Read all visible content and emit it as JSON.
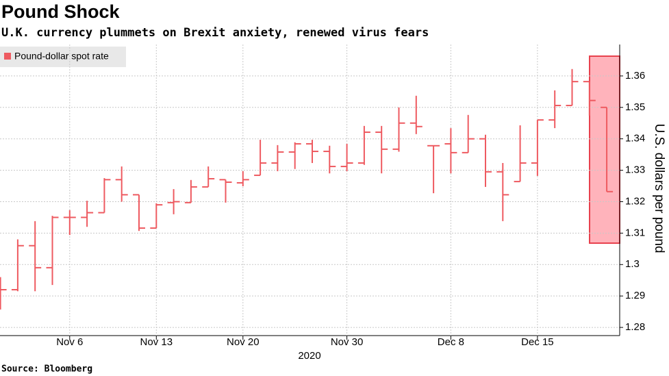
{
  "chart_data": {
    "type": "ohlc",
    "title": "Pound Shock",
    "subtitle": "U.K. currency plummets on Brexit anxiety, renewed virus fears",
    "source": "Source: Bloomberg",
    "x_label": "2020",
    "y_label": "U.S. dollars per pound",
    "categories": [
      null,
      null,
      null,
      null,
      "Nov 6",
      null,
      null,
      null,
      null,
      "Nov 13",
      null,
      null,
      null,
      null,
      "Nov 20",
      null,
      null,
      null,
      null,
      null,
      "Nov 30",
      null,
      null,
      null,
      null,
      null,
      "Dec 8",
      null,
      null,
      null,
      null,
      "Dec 15",
      null,
      null,
      null,
      null
    ],
    "series": [
      {
        "name": "Pound-dollar spot rate",
        "color": "#ee5a60",
        "open": [
          1.2935,
          1.292,
          1.306,
          1.299,
          1.315,
          1.315,
          1.3165,
          1.327,
          1.3222,
          1.3116,
          1.3197,
          1.3197,
          1.3247,
          1.327,
          1.326,
          1.3284,
          1.3323,
          1.3358,
          1.3384,
          1.336,
          1.3312,
          1.3323,
          1.3421,
          1.3367,
          1.345,
          1.3378,
          1.3384,
          1.3356,
          1.34,
          1.3295,
          1.3264,
          1.3323,
          1.346,
          1.3506,
          1.3582,
          1.35
        ],
        "high": [
          1.296,
          1.308,
          1.3138,
          1.3155,
          1.3173,
          1.3203,
          1.3275,
          1.3312,
          1.3222,
          1.3195,
          1.324,
          1.3269,
          1.3312,
          1.327,
          1.3297,
          1.3397,
          1.338,
          1.3389,
          1.3397,
          1.3378,
          1.3384,
          1.3441,
          1.3441,
          1.34998,
          1.3537,
          1.3378,
          1.3434,
          1.3476,
          1.3413,
          1.3323,
          1.3443,
          1.346,
          1.3554,
          1.3622,
          1.3582,
          1.35
        ],
        "low": [
          1.2857,
          1.2915,
          1.2915,
          1.2935,
          1.3094,
          1.312,
          1.3165,
          1.32,
          1.3107,
          1.3116,
          1.316,
          1.3197,
          1.3247,
          1.3197,
          1.3249,
          1.3284,
          1.3297,
          1.3304,
          1.3323,
          1.329,
          1.3297,
          1.3317,
          1.329,
          1.3359,
          1.3415,
          1.3227,
          1.329,
          1.3356,
          1.3247,
          1.3138,
          1.3264,
          1.3282,
          1.3434,
          1.3506,
          1.3474,
          1.3232
        ],
        "close": [
          1.292,
          1.306,
          1.299,
          1.315,
          1.315,
          1.3165,
          1.327,
          1.3222,
          1.3116,
          1.319,
          1.32,
          1.3247,
          1.3273,
          1.3262,
          1.327,
          1.3323,
          1.3358,
          1.3384,
          1.336,
          1.3312,
          1.3323,
          1.3421,
          1.3367,
          1.345,
          1.3439,
          1.3378,
          1.3356,
          1.34,
          1.3295,
          1.3222,
          1.3323,
          1.346,
          1.3506,
          1.3582,
          1.3522,
          1.3232
        ]
      }
    ],
    "ylim": [
      1.2774,
      1.37
    ],
    "yticks": [
      1.28,
      1.29,
      1.3,
      1.31,
      1.32,
      1.33,
      1.34,
      1.35,
      1.36
    ],
    "grid": true,
    "legend": "upper left"
  }
}
